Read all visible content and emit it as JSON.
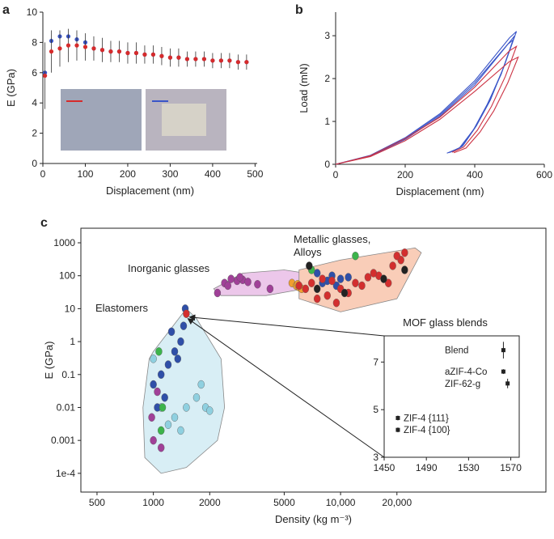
{
  "chart_data": [
    {
      "panel": "a",
      "type": "line",
      "xlabel": "Displacement (nm)",
      "ylabel": "E (GPa)",
      "xlim": [
        0,
        505
      ],
      "ylim": [
        0,
        10
      ],
      "xticks": [
        0,
        100,
        200,
        300,
        400,
        500
      ],
      "yticks": [
        0,
        2,
        4,
        6,
        8,
        10
      ],
      "x": [
        5,
        20,
        40,
        60,
        80,
        100,
        120,
        140,
        160,
        180,
        200,
        220,
        240,
        260,
        280,
        300,
        320,
        340,
        360,
        380,
        400,
        420,
        440,
        460,
        480
      ],
      "series": [
        {
          "color": "#3a55c8",
          "values": [
            6.0,
            8.1,
            8.4,
            8.4,
            8.2,
            8.0,
            7.6,
            7.5,
            7.4,
            7.4,
            7.3,
            7.3,
            7.2,
            7.2,
            7.1,
            7.0,
            7.0,
            6.9,
            6.9,
            6.9,
            6.8,
            6.8,
            6.8,
            6.7,
            6.7
          ]
        },
        {
          "color": "#d62b2b",
          "values": [
            5.8,
            7.4,
            7.6,
            7.8,
            7.8,
            7.7,
            7.6,
            7.5,
            7.4,
            7.4,
            7.3,
            7.3,
            7.2,
            7.2,
            7.1,
            7.0,
            7.0,
            6.9,
            6.9,
            6.9,
            6.8,
            6.8,
            6.8,
            6.7,
            6.7
          ],
          "errors": [
            2.2,
            1.4,
            1.2,
            1.1,
            1.0,
            0.9,
            0.8,
            0.8,
            0.7,
            0.7,
            0.7,
            0.7,
            0.6,
            0.6,
            0.6,
            0.6,
            0.6,
            0.5,
            0.5,
            0.5,
            0.5,
            0.5,
            0.5,
            0.5,
            0.5
          ]
        }
      ]
    },
    {
      "panel": "b",
      "type": "line",
      "xlabel": "Displacement (nm)",
      "ylabel": "Load (mN)",
      "xlim": [
        0,
        600
      ],
      "ylim": [
        0,
        3.55
      ],
      "xticks": [
        0,
        200,
        400,
        600
      ],
      "yticks": [
        0,
        1,
        2,
        3
      ],
      "series": [
        {
          "color": "#3a55c8",
          "x": [
            0,
            100,
            200,
            300,
            400,
            500,
            515,
            480,
            440,
            400,
            360,
            325
          ],
          "y": [
            0,
            0.2,
            0.6,
            1.15,
            1.9,
            2.85,
            3.0,
            2.2,
            1.45,
            0.85,
            0.4,
            0.27
          ]
        },
        {
          "color": "#3a55c8",
          "x": [
            0,
            100,
            200,
            300,
            400,
            500,
            520,
            485,
            445,
            405,
            365,
            330
          ],
          "y": [
            0,
            0.21,
            0.62,
            1.18,
            1.95,
            2.95,
            3.1,
            2.3,
            1.5,
            0.9,
            0.42,
            0.28
          ]
        },
        {
          "color": "#3a55c8",
          "x": [
            0,
            100,
            200,
            300,
            400,
            495,
            510,
            476,
            436,
            396,
            356,
            320
          ],
          "y": [
            0,
            0.19,
            0.58,
            1.12,
            1.85,
            2.8,
            2.9,
            2.1,
            1.4,
            0.8,
            0.38,
            0.26
          ]
        },
        {
          "color": "#cc3344",
          "x": [
            0,
            100,
            200,
            300,
            400,
            500,
            525,
            495,
            455,
            415,
            375,
            340
          ],
          "y": [
            0,
            0.18,
            0.55,
            1.05,
            1.7,
            2.4,
            2.5,
            1.9,
            1.25,
            0.75,
            0.38,
            0.27
          ]
        },
        {
          "color": "#cc3344",
          "x": [
            0,
            100,
            200,
            300,
            400,
            500,
            520,
            488,
            448,
            408,
            368,
            335
          ],
          "y": [
            0,
            0.2,
            0.6,
            1.1,
            1.8,
            2.65,
            2.75,
            2.05,
            1.35,
            0.8,
            0.4,
            0.28
          ]
        }
      ]
    },
    {
      "panel": "c",
      "type": "scatter",
      "xlabel": "Density (kg m⁻³)",
      "ylabel": "E (GPa)",
      "log_x": true,
      "log_y": true,
      "xlim": [
        410,
        125000
      ],
      "ylim": [
        2.7e-05,
        2770
      ],
      "xticks": [
        500,
        1000,
        2000,
        5000,
        {
          "value": 10000,
          "label": "10,000"
        },
        {
          "value": 20000,
          "label": "20,000"
        }
      ],
      "yticks": [
        {
          "value": 0.0001,
          "label": "1e-4"
        },
        0.001,
        0.01,
        0.1,
        1,
        10,
        100,
        1000
      ],
      "regions": [
        {
          "label": [
            "Elastomers"
          ],
          "color": "#d8eef5",
          "x": [
            1000,
            1400,
            1500,
            1700,
            2300,
            2400,
            2200,
            1500,
            1100,
            900,
            880,
            950
          ],
          "y": [
            0.5,
            6,
            10,
            5,
            0.3,
            0.01,
            0.001,
            0.00015,
            0.0001,
            0.0003,
            0.01,
            0.3
          ]
        },
        {
          "label": [
            "Inorganic glasses"
          ],
          "color": "#ecc7ea",
          "x": [
            2100,
            3000,
            5000,
            8000,
            8000,
            4000,
            2300
          ],
          "y": [
            40,
            120,
            150,
            100,
            50,
            25,
            25
          ]
        },
        {
          "label": [
            "Metallic glasses,",
            "Alloys"
          ],
          "color": "#f9cdb8",
          "x": [
            6000,
            10000,
            25000,
            27000,
            20000,
            10000,
            6000
          ],
          "y": [
            150,
            300,
            700,
            500,
            20,
            8,
            20
          ]
        }
      ],
      "series": [
        {
          "color": "#8fd0e0",
          "x": [
            1100,
            1300,
            1500,
            1700,
            1900,
            1200,
            1400,
            1800,
            2000,
            1000
          ],
          "y": [
            0.01,
            0.005,
            0.01,
            0.02,
            0.01,
            0.003,
            0.002,
            0.05,
            0.008,
            0.3
          ]
        },
        {
          "color": "#2f4fa8",
          "x": [
            1480,
            1450,
            1400,
            1300,
            1200,
            1100,
            1000,
            1050,
            1350,
            1250,
            1150,
            8000,
            9000,
            10000,
            7500,
            11000,
            8500,
            9500
          ],
          "y": [
            10,
            3,
            1,
            0.5,
            0.2,
            0.1,
            0.05,
            0.01,
            0.3,
            2,
            0.02,
            60,
            100,
            80,
            120,
            90,
            70,
            50
          ]
        },
        {
          "color": "#a04098",
          "x": [
            1000,
            1050,
            980,
            1100,
            2400,
            2600,
            2800,
            3000,
            3200,
            2500,
            2900,
            2200,
            3600,
            4200
          ],
          "y": [
            0.001,
            0.03,
            0.005,
            0.0006,
            60,
            80,
            70,
            75,
            65,
            50,
            90,
            30,
            55,
            40
          ]
        },
        {
          "color": "#3cb44b",
          "x": [
            1070,
            1120,
            1100,
            7000,
            12000
          ],
          "y": [
            0.5,
            0.01,
            0.002,
            150,
            400
          ]
        },
        {
          "color": "#f0a030",
          "x": [
            5500,
            5800,
            6000,
            6200,
            5900
          ],
          "y": [
            60,
            50,
            45,
            40,
            55
          ]
        },
        {
          "color": "#d32f2f",
          "x": [
            1500,
            6000,
            7000,
            8000,
            9000,
            10000,
            11000,
            12000,
            14000,
            16000,
            19000,
            21000,
            7500,
            8500,
            13000,
            9500,
            6500,
            15000,
            18000,
            20000,
            22000
          ],
          "y": [
            7,
            50,
            60,
            80,
            70,
            40,
            30,
            60,
            90,
            100,
            200,
            300,
            20,
            25,
            50,
            15,
            40,
            120,
            60,
            400,
            500
          ]
        },
        {
          "color": "#222222",
          "x": [
            7500,
            10500,
            6800,
            17000,
            22000
          ],
          "y": [
            40,
            30,
            200,
            80,
            150
          ]
        }
      ]
    },
    {
      "type": "scatter",
      "title": "MOF glass blends",
      "xlim": [
        1450,
        1578
      ],
      "ylim": [
        3,
        8.1
      ],
      "xticks": [
        1450,
        1490,
        1530,
        1570
      ],
      "yticks": [
        3,
        5,
        7
      ],
      "labels": [
        "Blend",
        "aZIF-4-Co",
        "ZIF-62-g",
        "ZIF-4 {111}",
        "ZIF-4 {100}"
      ],
      "x": [
        1563,
        1563,
        1567,
        1463,
        1463
      ],
      "y": [
        7.5,
        6.6,
        6.1,
        4.65,
        4.15
      ],
      "errors": [
        0.35,
        0.1,
        0.2,
        0.1,
        0.1
      ],
      "color": "#222222"
    }
  ]
}
